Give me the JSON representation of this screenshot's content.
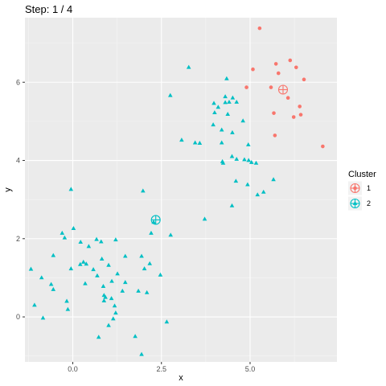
{
  "chart_data": {
    "type": "scatter",
    "title": "Step: 1 / 4",
    "xlabel": "x",
    "ylabel": "y",
    "xlim": [
      -1.35,
      7.45
    ],
    "ylim": [
      -1.15,
      7.65
    ],
    "x_ticks": [
      0.0,
      2.5,
      5.0
    ],
    "x_tick_labels": [
      "0.0",
      "2.5",
      "5.0"
    ],
    "y_ticks": [
      0,
      2,
      4,
      6
    ],
    "y_tick_labels": [
      "0",
      "2",
      "4",
      "6"
    ],
    "grid": true,
    "legend": {
      "title": "Cluster",
      "position": "right",
      "entries": [
        {
          "label": "1",
          "color": "#F8766D"
        },
        {
          "label": "2",
          "color": "#00BFC4"
        }
      ]
    },
    "series": [
      {
        "name": "1",
        "color": "#F8766D",
        "marker": "circle",
        "points": [
          [
            5.27,
            7.38
          ],
          [
            6.13,
            6.56
          ],
          [
            5.73,
            6.47
          ],
          [
            6.3,
            6.38
          ],
          [
            5.08,
            6.33
          ],
          [
            5.8,
            6.23
          ],
          [
            6.52,
            6.07
          ],
          [
            5.59,
            5.87
          ],
          [
            4.9,
            5.87
          ],
          [
            6.07,
            5.6
          ],
          [
            6.4,
            5.38
          ],
          [
            5.67,
            5.21
          ],
          [
            6.43,
            5.17
          ],
          [
            6.23,
            5.11
          ],
          [
            5.7,
            4.64
          ],
          [
            7.05,
            4.36
          ]
        ],
        "centroid": [
          5.93,
          5.81
        ]
      },
      {
        "name": "2",
        "color": "#00BFC4",
        "marker": "triangle",
        "points": [
          [
            3.27,
            6.38
          ],
          [
            4.34,
            6.09
          ],
          [
            2.75,
            5.66
          ],
          [
            4.3,
            5.63
          ],
          [
            4.51,
            5.6
          ],
          [
            3.98,
            5.46
          ],
          [
            4.3,
            5.48
          ],
          [
            4.41,
            5.49
          ],
          [
            4.62,
            5.49
          ],
          [
            4.1,
            5.36
          ],
          [
            4.0,
            5.22
          ],
          [
            4.37,
            5.18
          ],
          [
            3.96,
            4.91
          ],
          [
            4.8,
            5.01
          ],
          [
            4.2,
            4.78
          ],
          [
            4.5,
            4.71
          ],
          [
            3.07,
            4.52
          ],
          [
            3.45,
            4.45
          ],
          [
            3.58,
            4.44
          ],
          [
            4.2,
            4.45
          ],
          [
            4.95,
            4.4
          ],
          [
            4.49,
            4.1
          ],
          [
            4.62,
            4.03
          ],
          [
            4.84,
            4.02
          ],
          [
            4.96,
            4.0
          ],
          [
            4.22,
            3.97
          ],
          [
            4.24,
            3.93
          ],
          [
            5.04,
            3.95
          ],
          [
            5.17,
            3.93
          ],
          [
            5.66,
            3.51
          ],
          [
            4.6,
            3.47
          ],
          [
            4.93,
            3.38
          ],
          [
            5.38,
            3.19
          ],
          [
            5.21,
            3.12
          ],
          [
            4.49,
            2.84
          ],
          [
            3.72,
            2.5
          ],
          [
            -0.05,
            3.26
          ],
          [
            1.98,
            3.22
          ],
          [
            2.28,
            2.42
          ],
          [
            2.21,
            2.14
          ],
          [
            2.76,
            2.09
          ],
          [
            -0.3,
            2.14
          ],
          [
            -0.23,
            2.02
          ],
          [
            0.02,
            2.26
          ],
          [
            0.67,
            1.98
          ],
          [
            0.8,
            1.92
          ],
          [
            1.21,
            1.97
          ],
          [
            0.22,
            1.91
          ],
          [
            0.45,
            1.8
          ],
          [
            0.21,
            1.34
          ],
          [
            0.38,
            1.35
          ],
          [
            0.3,
            1.4
          ],
          [
            -0.05,
            1.23
          ],
          [
            0.58,
            1.21
          ],
          [
            0.82,
            1.48
          ],
          [
            1.01,
            1.32
          ],
          [
            1.48,
            1.55
          ],
          [
            1.94,
            1.55
          ],
          [
            2.02,
            1.23
          ],
          [
            2.17,
            1.36
          ],
          [
            2.47,
            1.07
          ],
          [
            1.26,
            1.1
          ],
          [
            1.1,
            0.91
          ],
          [
            1.48,
            0.88
          ],
          [
            0.69,
            1.05
          ],
          [
            0.35,
            0.85
          ],
          [
            0.86,
            0.78
          ],
          [
            1.4,
            0.66
          ],
          [
            2.09,
            0.62
          ],
          [
            1.85,
            0.66
          ],
          [
            -1.18,
            1.22
          ],
          [
            -0.61,
            0.83
          ],
          [
            -0.55,
            0.7
          ],
          [
            -0.88,
            1.0
          ],
          [
            -0.17,
            0.4
          ],
          [
            0.88,
            0.41
          ],
          [
            0.92,
            0.5
          ],
          [
            0.88,
            0.55
          ],
          [
            1.09,
            0.47
          ],
          [
            1.18,
            0.28
          ],
          [
            1.21,
            0.1
          ],
          [
            1.14,
            -0.05
          ],
          [
            -1.08,
            0.3
          ],
          [
            -0.14,
            0.19
          ],
          [
            -0.84,
            -0.03
          ],
          [
            2.65,
            -0.13
          ],
          [
            1.01,
            -0.22
          ],
          [
            0.73,
            -0.52
          ],
          [
            1.76,
            -0.5
          ],
          [
            1.94,
            -0.96
          ],
          [
            -0.55,
            1.57
          ]
        ],
        "centroid": [
          2.34,
          2.48
        ]
      }
    ]
  }
}
